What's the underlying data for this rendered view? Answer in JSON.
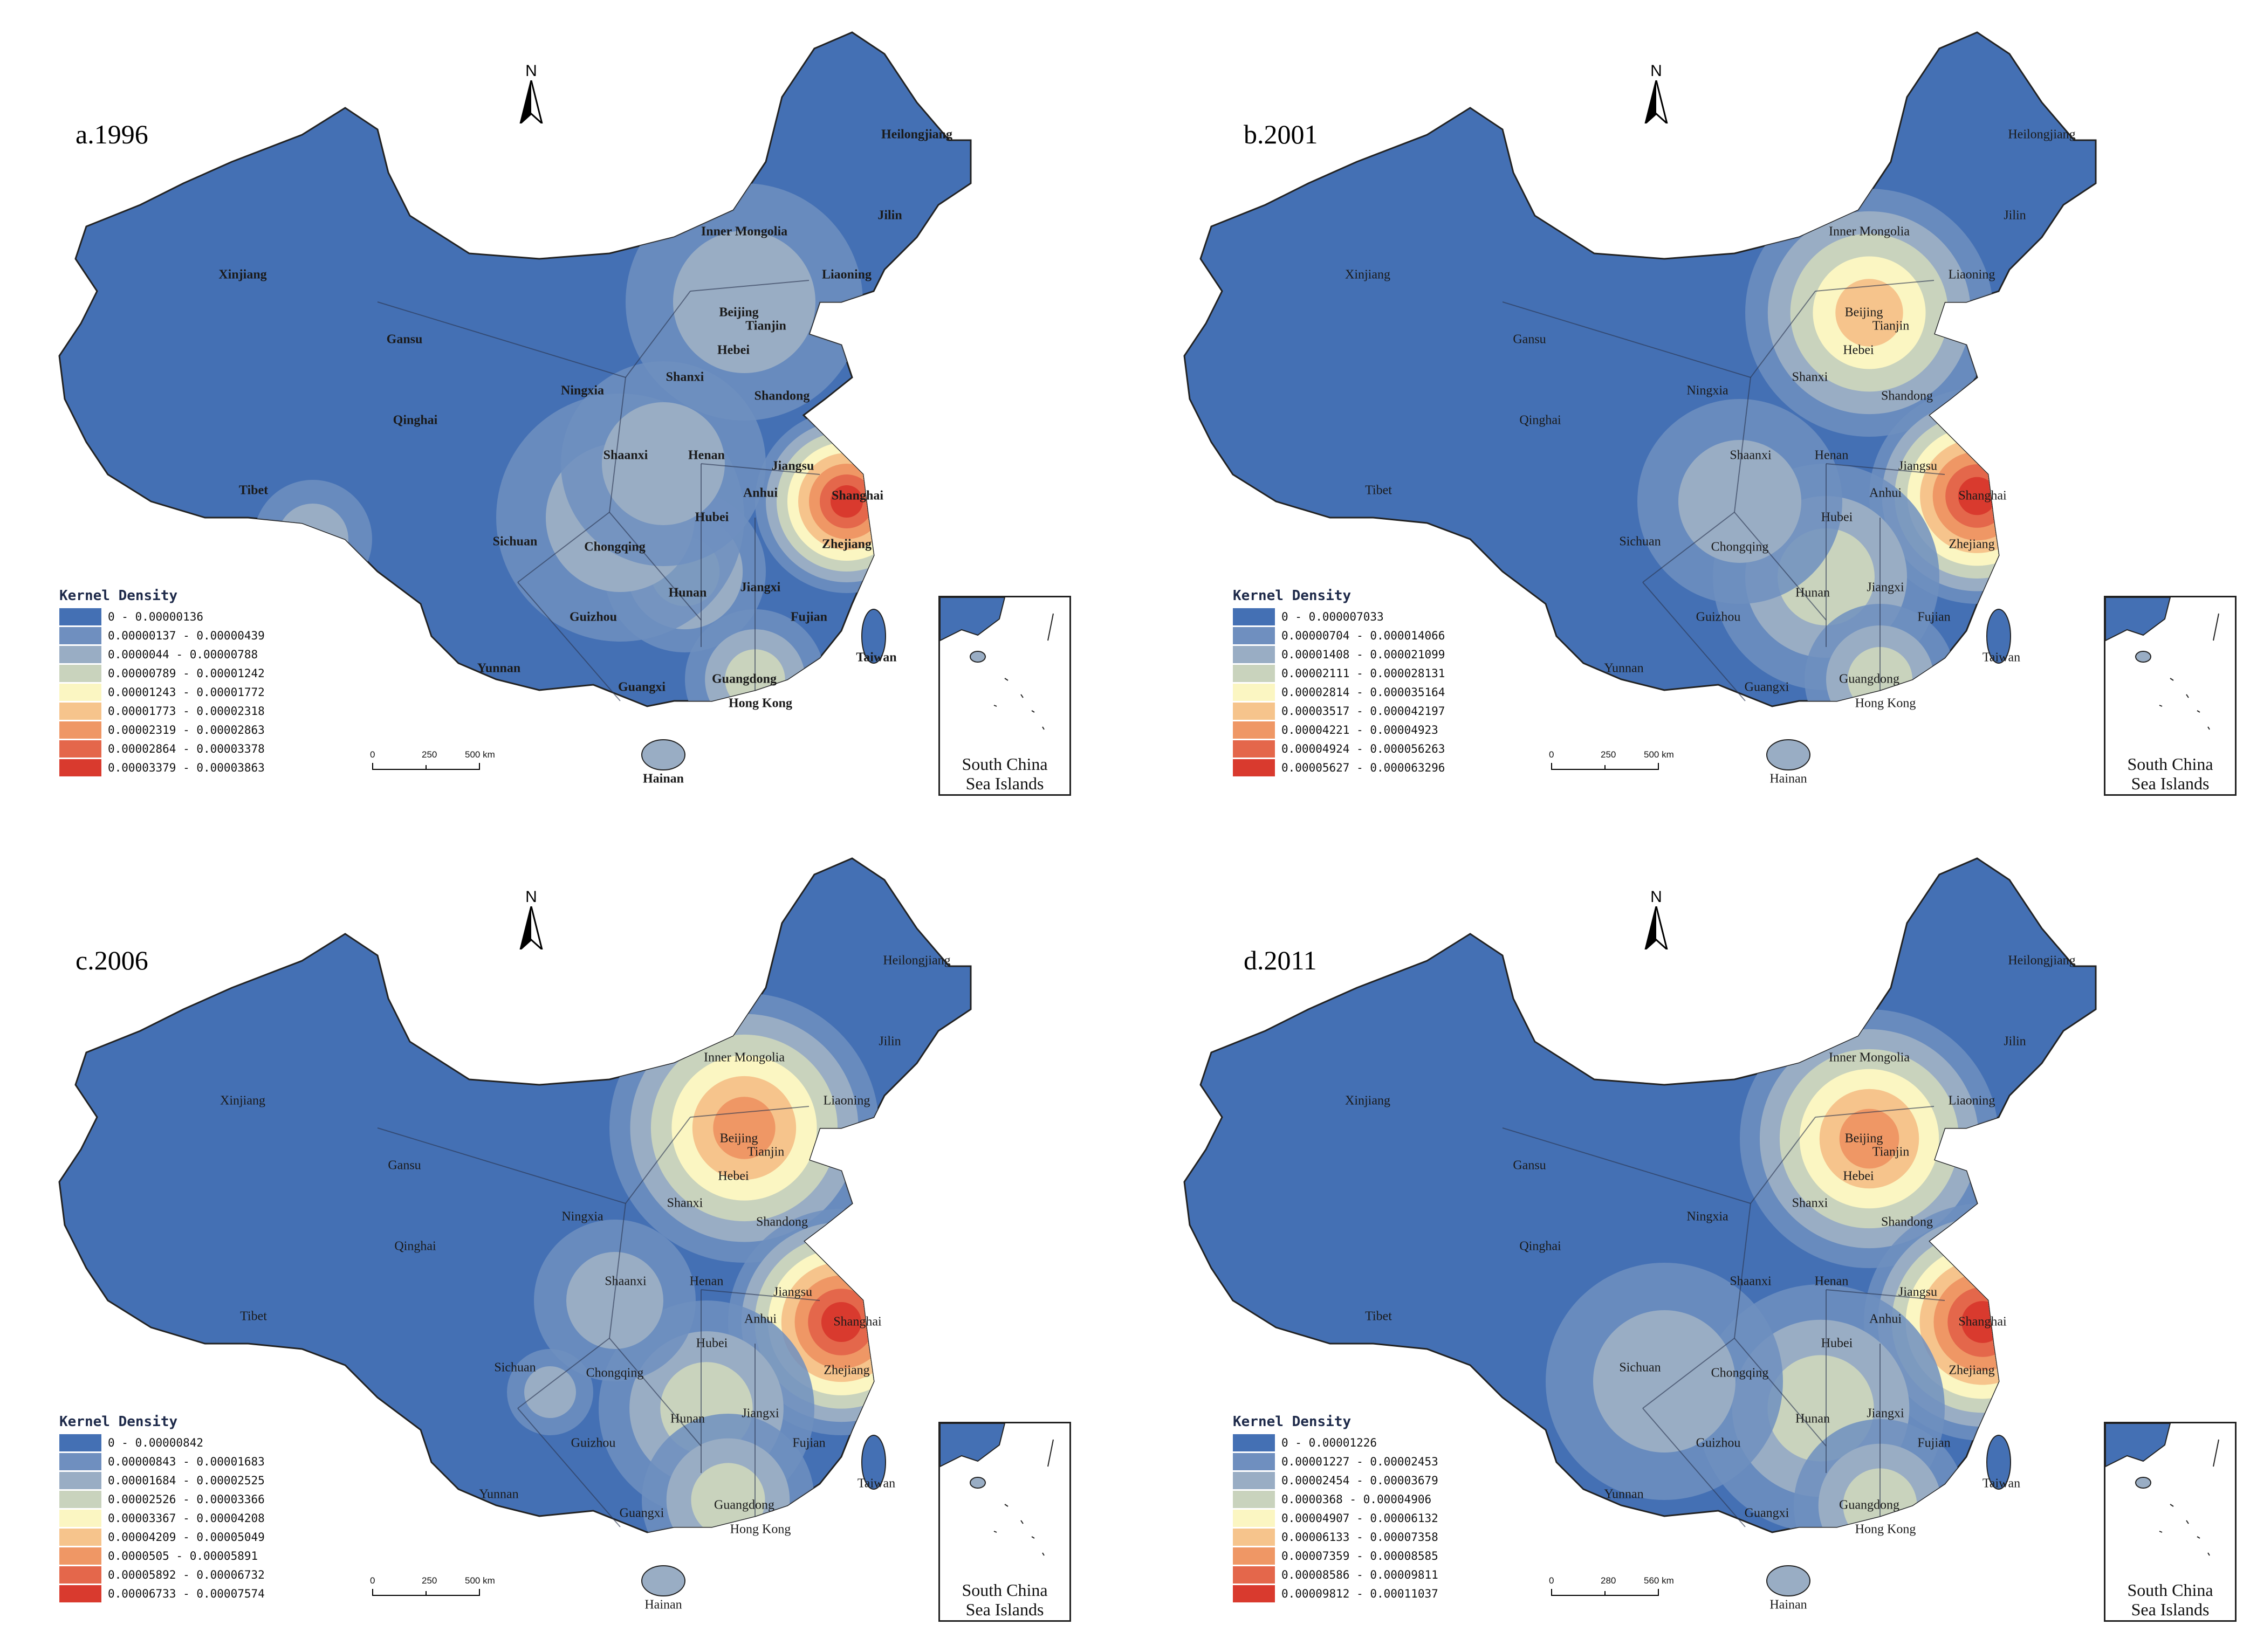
{
  "colors": {
    "base": "#4470b4",
    "ramp": [
      "#4470b4",
      "#6f8fbf",
      "#99adc4",
      "#c9d3bd",
      "#fbf6c2",
      "#f6c48c",
      "#ef9765",
      "#e4674b",
      "#d93a2e"
    ]
  },
  "inset_label_line1": "South China",
  "inset_label_line2": "Sea Islands",
  "north_label": "N",
  "provinces_common": [
    "Xinjiang",
    "Tibet",
    "Qinghai",
    "Gansu",
    "Inner Mongolia",
    "Heilongjiang",
    "Jilin",
    "Liaoning",
    "Beijing",
    "Tianjin",
    "Hebei",
    "Shanxi",
    "Shandong",
    "Ningxia",
    "Shaanxi",
    "Henan",
    "Jiangsu",
    "Anhui",
    "Shanghai",
    "Hubei",
    "Zhejiang",
    "Sichuan",
    "Chongqing",
    "Hunan",
    "Jiangxi",
    "Fujian",
    "Guizhou",
    "Yunnan",
    "Guangxi",
    "Guangdong",
    "Hong Kong",
    "Taiwan",
    "Hainan"
  ],
  "panels": [
    {
      "title": "a.1996",
      "legend_title": "Kernel Density",
      "legend_items": [
        "0 - 0.00000136",
        "0.00000137 - 0.00000439",
        "0.0000044 - 0.00000788",
        "0.00000789 - 0.00001242",
        "0.00001243 - 0.00001772",
        "0.00001773 - 0.00002318",
        "0.00002319 - 0.00002863",
        "0.00002864 - 0.00003378",
        "0.00003379 - 0.00003863"
      ],
      "scale_labels": [
        "0",
        "250",
        "500 km"
      ]
    },
    {
      "title": "b.2001",
      "legend_title": "Kernel Density",
      "legend_items": [
        "0 - 0.000007033",
        "0.00000704 - 0.000014066",
        "0.00001408 - 0.000021099",
        "0.00002111 - 0.000028131",
        "0.00002814 - 0.000035164",
        "0.00003517 - 0.000042197",
        "0.00004221 - 0.00004923",
        "0.00004924 - 0.000056263",
        "0.00005627 - 0.000063296"
      ],
      "scale_labels": [
        "0",
        "250",
        "500 km"
      ]
    },
    {
      "title": "c.2006",
      "legend_title": "Kernel Density",
      "legend_items": [
        "0 - 0.00000842",
        "0.00000843 - 0.00001683",
        "0.00001684 - 0.00002525",
        "0.00002526 - 0.00003366",
        "0.00003367 - 0.00004208",
        "0.00004209 - 0.00005049",
        "0.0000505 - 0.00005891",
        "0.00005892 - 0.00006732",
        "0.00006733 - 0.00007574"
      ],
      "scale_labels": [
        "0",
        "250",
        "500 km"
      ]
    },
    {
      "title": "d.2011",
      "legend_title": "Kernel Density",
      "legend_items": [
        "0 - 0.00001226",
        "0.00001227 - 0.00002453",
        "0.00002454 - 0.00003679",
        "0.0000368 - 0.00004906",
        "0.00004907 - 0.00006132",
        "0.00006133 - 0.00007358",
        "0.00007359 - 0.00008585",
        "0.00008586 - 0.00009811",
        "0.00009812 - 0.00011037"
      ],
      "scale_labels": [
        "0",
        "280",
        "560 km"
      ]
    }
  ]
}
